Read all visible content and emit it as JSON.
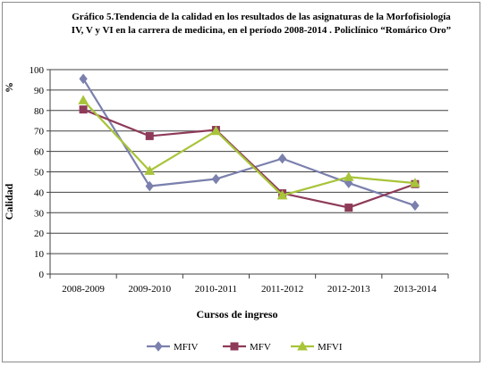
{
  "chart_data": {
    "type": "line",
    "title_lines": [
      "Gráfico 5.Tendencia de la calidad en los resultados de las asignaturas de la Morfofisiología",
      "IV, V y VI en la carrera de medicina, en el período 2008-2014 . Policlínico “Romárico Oro”"
    ],
    "categories": [
      "2008-2009",
      "2009-2010",
      "2010-2011",
      "2011-2012",
      "2012-2013",
      "2013-2014"
    ],
    "series": [
      {
        "name": "MFIV",
        "color": "#7b80ad",
        "marker": "diamond",
        "values": [
          95.5,
          43,
          46.5,
          56.5,
          44.5,
          33.5
        ]
      },
      {
        "name": "MFV",
        "color": "#8e3a59",
        "marker": "square",
        "values": [
          80.5,
          67.5,
          70.5,
          39.5,
          32.5,
          44
        ]
      },
      {
        "name": "MFVI",
        "color": "#a8c43a",
        "marker": "triangle",
        "values": [
          85,
          50.5,
          70,
          38.5,
          47.5,
          44.5
        ]
      }
    ],
    "yticks": [
      0,
      10,
      20,
      30,
      40,
      50,
      60,
      70,
      80,
      90,
      100
    ],
    "ylim": [
      0,
      100
    ],
    "ylabel": "Calidad",
    "yunit": "%",
    "xlabel": "Cursos de ingreso",
    "grid": true,
    "legend_position": "bottom"
  }
}
